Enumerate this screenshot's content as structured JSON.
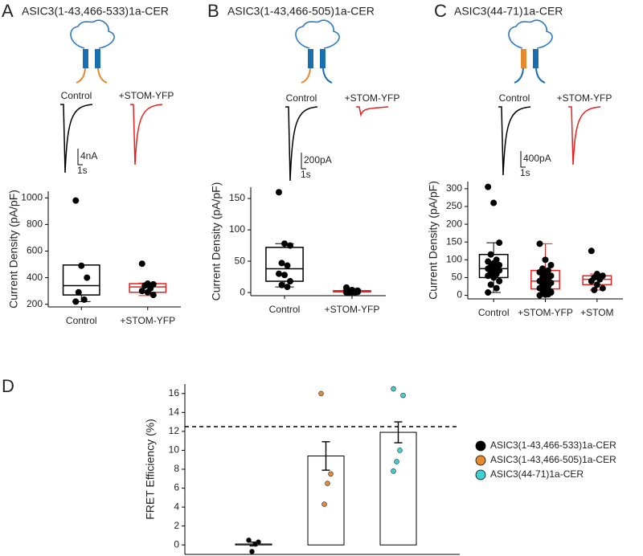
{
  "chart_data": [
    {
      "type": "box",
      "panel": "A",
      "title": "ASIC3(1-43,466-533)1a-CER",
      "ylabel": "Current Density (pA/pF)",
      "categories": [
        "Control",
        "+STOM-YFP"
      ],
      "ylim": [
        180,
        1050
      ],
      "yticks": [
        200,
        400,
        600,
        800,
        1000
      ],
      "boxes": [
        {
          "color": "#000000",
          "whislo": 220,
          "q1": 270,
          "med": 340,
          "q3": 495,
          "whishi": 495,
          "points": [
            980,
            490,
            400,
            290,
            235,
            220
          ]
        },
        {
          "color": "#e8201f",
          "whislo": 265,
          "q1": 290,
          "med": 330,
          "q3": 355,
          "whishi": 360,
          "points": [
            505,
            355,
            350,
            340,
            320,
            300,
            290,
            270
          ]
        }
      ],
      "traces": {
        "labels": [
          "Control",
          "+STOM-YFP"
        ],
        "colors": [
          "#000000",
          "#e8201f"
        ],
        "scale_y": "4nA",
        "scale_x": "1s"
      }
    },
    {
      "type": "box",
      "panel": "B",
      "title": "ASIC3(1-43,466-505)1a-CER",
      "ylabel": "Current Density (pA/pF)",
      "categories": [
        "Control",
        "+STOM-YFP"
      ],
      "ylim": [
        -5,
        168
      ],
      "yticks": [
        0,
        50,
        100,
        150
      ],
      "boxes": [
        {
          "color": "#000000",
          "whislo": 9,
          "q1": 18,
          "med": 38,
          "q3": 72,
          "whishi": 78,
          "points": [
            160,
            78,
            75,
            47,
            43,
            30,
            28,
            18,
            12,
            9
          ]
        },
        {
          "color": "#e8201f",
          "whislo": 0,
          "q1": 1,
          "med": 2,
          "q3": 3,
          "whishi": 5,
          "points": [
            8,
            4,
            3,
            3,
            2,
            2,
            1,
            1,
            0,
            0,
            0,
            1,
            2
          ]
        }
      ],
      "traces": {
        "labels": [
          "Control",
          "+STOM-YFP"
        ],
        "colors": [
          "#000000",
          "#e8201f"
        ],
        "scale_y": "200pA",
        "scale_x": "1s"
      }
    },
    {
      "type": "box",
      "panel": "C",
      "title": "ASIC3(44-71)1a-CER",
      "ylabel": "Current Density (pA/pF)",
      "categories": [
        "Control",
        "+STOM-YFP",
        "+STOM"
      ],
      "ylim": [
        -10,
        320
      ],
      "yticks": [
        0,
        50,
        100,
        150,
        200,
        250,
        300
      ],
      "boxes": [
        {
          "color": "#000000",
          "whislo": 8,
          "q1": 50,
          "med": 75,
          "q3": 115,
          "whishi": 148,
          "points": [
            305,
            260,
            148,
            115,
            100,
            95,
            90,
            85,
            80,
            78,
            75,
            72,
            70,
            65,
            60,
            55,
            50,
            40,
            30,
            20,
            8
          ]
        },
        {
          "color": "#e8201f",
          "whislo": 0,
          "q1": 18,
          "med": 40,
          "q3": 70,
          "whishi": 145,
          "points": [
            145,
            100,
            85,
            75,
            70,
            65,
            60,
            55,
            50,
            45,
            40,
            38,
            35,
            30,
            25,
            20,
            15,
            10,
            5,
            3,
            0,
            2,
            8
          ]
        },
        {
          "color": "#e8201f",
          "whislo": 15,
          "q1": 30,
          "med": 45,
          "q3": 55,
          "whishi": 60,
          "points": [
            125,
            60,
            55,
            50,
            45,
            40,
            30,
            20,
            15
          ]
        }
      ],
      "traces": {
        "labels": [
          "Control",
          "+STOM-YFP"
        ],
        "colors": [
          "#000000",
          "#e8201f"
        ],
        "scale_y": "400pA",
        "scale_x": "1s"
      }
    },
    {
      "type": "bar",
      "panel": "D",
      "ylabel": "FRET Efficiency (%)",
      "bar_color": "#ffffff",
      "ylim": [
        -1,
        17
      ],
      "yticks": [
        0,
        2,
        4,
        6,
        8,
        10,
        12,
        14,
        16
      ],
      "reference_line": 12.5,
      "series": [
        {
          "name": "ASIC3(1-43,466-533)1a-CER",
          "color": "#000000",
          "value": 0.1,
          "error": 0.2,
          "points": [
            0.5,
            0.3,
            0.1,
            -0.7
          ]
        },
        {
          "name": "ASIC3(1-43,466-505)1a-CER",
          "color": "#e58a2e",
          "value": 9.4,
          "error": 1.5,
          "points": [
            16,
            7.5,
            6.5,
            4.3
          ]
        },
        {
          "name": "ASIC3(44-71)1a-CER",
          "color": "#3fd0d0",
          "value": 11.9,
          "error": 1.1,
          "points": [
            16.5,
            15.8,
            10,
            8.8,
            7.8
          ]
        }
      ]
    }
  ]
}
